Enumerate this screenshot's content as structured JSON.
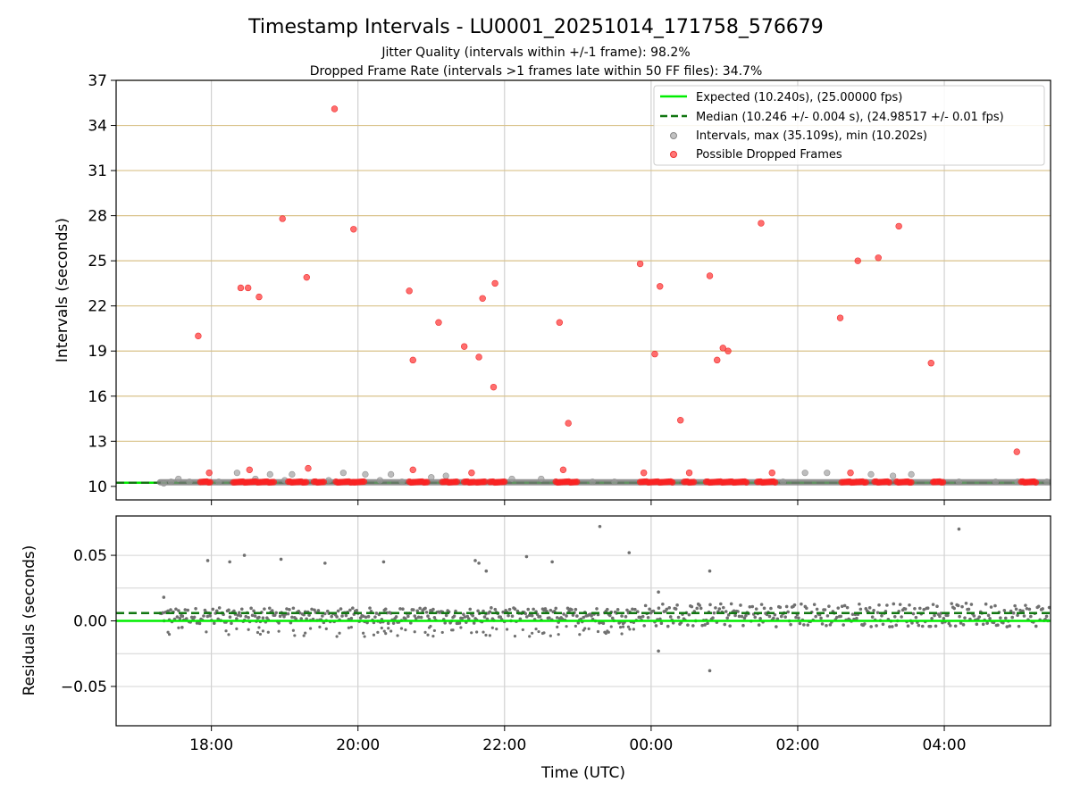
{
  "chart_data": {
    "type": "scatter",
    "title": "Timestamp Intervals - LU0001_20251014_171758_576679",
    "subtitle_1": "Jitter Quality (intervals within +/-1 frame): 98.2%",
    "subtitle_2": "Dropped Frame Rate (intervals >1 frames late within 50 FF files): 34.7%",
    "xlabel": "Time (UTC)",
    "x_unit": "hours since 00:00 UTC on 2025-10-14",
    "xlim": [
      16.7,
      29.45
    ],
    "x_ticks": [
      18,
      20,
      22,
      24,
      26,
      28
    ],
    "x_tick_labels": [
      "18:00",
      "20:00",
      "22:00",
      "00:00",
      "02:00",
      "04:00"
    ],
    "legend": {
      "location": "top-right",
      "expected": "Expected (10.240s), (25.00000 fps)",
      "median": "Median (10.246 +/- 0.004 s), (24.98517 +/- 0.01 fps)",
      "intervals": "Intervals, max (35.109s), min (10.202s)",
      "dropped": "Possible Dropped Frames"
    },
    "colors": {
      "expected": "#00ee00",
      "median": "#117711",
      "intervals": "#999999",
      "dropped": "#ff2020",
      "residuals": "#707070",
      "grid": "#c8c8c8",
      "hline": "#d9c28a"
    },
    "top_panel": {
      "ylabel": "Intervals (seconds)",
      "ylim": [
        9.1,
        37
      ],
      "y_ticks": [
        10,
        13,
        16,
        19,
        22,
        25,
        28,
        31,
        34,
        37
      ],
      "y_tick_labels": [
        "10",
        "13",
        "16",
        "19",
        "22",
        "25",
        "28",
        "31",
        "34",
        "37"
      ],
      "expected": 10.24,
      "median": 10.246,
      "band_start": 17.3,
      "dropped_band_segments": [
        [
          17.85,
          18.0
        ],
        [
          18.3,
          18.85
        ],
        [
          19.05,
          19.3
        ],
        [
          19.4,
          19.55
        ],
        [
          19.7,
          19.95
        ],
        [
          19.95,
          20.1
        ],
        [
          20.7,
          20.95
        ],
        [
          21.15,
          21.35
        ],
        [
          21.45,
          21.6
        ],
        [
          21.62,
          21.75
        ],
        [
          21.8,
          22.0
        ],
        [
          22.7,
          23.0
        ],
        [
          23.85,
          24.3
        ],
        [
          24.45,
          24.6
        ],
        [
          24.75,
          25.3
        ],
        [
          25.45,
          25.7
        ],
        [
          26.6,
          26.95
        ],
        [
          27.05,
          27.25
        ],
        [
          27.35,
          27.55
        ],
        [
          27.85,
          28.0
        ],
        [
          29.05,
          29.25
        ]
      ],
      "intervals_gray": [
        [
          17.35,
          10.2
        ],
        [
          17.45,
          10.3
        ],
        [
          17.55,
          10.5
        ],
        [
          17.7,
          10.3
        ],
        [
          18.1,
          10.3
        ],
        [
          18.35,
          10.9
        ],
        [
          18.6,
          10.5
        ],
        [
          18.8,
          10.8
        ],
        [
          19.0,
          10.4
        ],
        [
          19.1,
          10.8
        ],
        [
          19.6,
          10.4
        ],
        [
          19.8,
          10.9
        ],
        [
          20.1,
          10.8
        ],
        [
          20.3,
          10.4
        ],
        [
          20.45,
          10.8
        ],
        [
          20.6,
          10.3
        ],
        [
          21.0,
          10.6
        ],
        [
          21.2,
          10.7
        ],
        [
          22.1,
          10.5
        ],
        [
          22.5,
          10.5
        ],
        [
          23.2,
          10.3
        ],
        [
          23.5,
          10.3
        ],
        [
          25.8,
          10.3
        ],
        [
          26.1,
          10.9
        ],
        [
          26.4,
          10.9
        ],
        [
          26.8,
          10.3
        ],
        [
          27.0,
          10.8
        ],
        [
          27.3,
          10.7
        ],
        [
          27.55,
          10.8
        ],
        [
          28.2,
          10.3
        ],
        [
          28.7,
          10.3
        ],
        [
          29.0,
          10.3
        ],
        [
          29.4,
          10.3
        ]
      ],
      "dropped_points": [
        [
          17.82,
          20.0
        ],
        [
          17.97,
          10.9
        ],
        [
          18.4,
          23.2
        ],
        [
          18.5,
          23.2
        ],
        [
          18.52,
          11.1
        ],
        [
          18.65,
          22.6
        ],
        [
          18.97,
          27.8
        ],
        [
          19.3,
          23.9
        ],
        [
          19.32,
          11.2
        ],
        [
          19.68,
          35.1
        ],
        [
          19.94,
          27.1
        ],
        [
          20.7,
          23.0
        ],
        [
          20.75,
          18.4
        ],
        [
          20.75,
          11.1
        ],
        [
          21.1,
          20.9
        ],
        [
          21.45,
          19.3
        ],
        [
          21.55,
          10.9
        ],
        [
          21.65,
          18.6
        ],
        [
          21.7,
          22.5
        ],
        [
          21.85,
          16.6
        ],
        [
          21.87,
          23.5
        ],
        [
          22.75,
          20.9
        ],
        [
          22.8,
          11.1
        ],
        [
          22.87,
          14.2
        ],
        [
          23.85,
          24.8
        ],
        [
          23.9,
          10.9
        ],
        [
          24.05,
          18.8
        ],
        [
          24.12,
          23.3
        ],
        [
          24.4,
          14.4
        ],
        [
          24.52,
          10.9
        ],
        [
          24.8,
          24.0
        ],
        [
          24.9,
          18.4
        ],
        [
          24.98,
          19.2
        ],
        [
          25.05,
          19.0
        ],
        [
          25.5,
          27.5
        ],
        [
          25.65,
          10.9
        ],
        [
          26.58,
          21.2
        ],
        [
          26.72,
          10.9
        ],
        [
          26.82,
          25.0
        ],
        [
          27.1,
          25.2
        ],
        [
          27.38,
          27.3
        ],
        [
          27.82,
          18.2
        ],
        [
          27.86,
          10.3
        ],
        [
          28.99,
          12.3
        ]
      ]
    },
    "bottom_panel": {
      "ylabel": "Residuals (seconds)",
      "ylim": [
        -0.08,
        0.08
      ],
      "y_ticks": [
        -0.05,
        0,
        0.05
      ],
      "y_tick_labels": [
        "−0.05",
        "0.00",
        "0.05"
      ],
      "y_grid_ticks": [
        -0.05,
        -0.025,
        0,
        0.025,
        0.05
      ],
      "expected": 0.0,
      "median": 0.006,
      "residual_outliers": [
        [
          17.35,
          0.018
        ],
        [
          17.6,
          -0.005
        ],
        [
          17.95,
          0.046
        ],
        [
          18.25,
          0.045
        ],
        [
          18.45,
          0.05
        ],
        [
          18.95,
          0.047
        ],
        [
          19.55,
          0.044
        ],
        [
          20.35,
          0.045
        ],
        [
          21.6,
          0.046
        ],
        [
          21.65,
          0.044
        ],
        [
          21.75,
          0.038
        ],
        [
          22.3,
          0.049
        ],
        [
          22.65,
          0.045
        ],
        [
          23.3,
          0.072
        ],
        [
          23.7,
          0.052
        ],
        [
          24.1,
          0.022
        ],
        [
          24.1,
          -0.023
        ],
        [
          24.8,
          0.038
        ],
        [
          24.8,
          -0.038
        ],
        [
          28.2,
          0.07
        ]
      ]
    }
  }
}
